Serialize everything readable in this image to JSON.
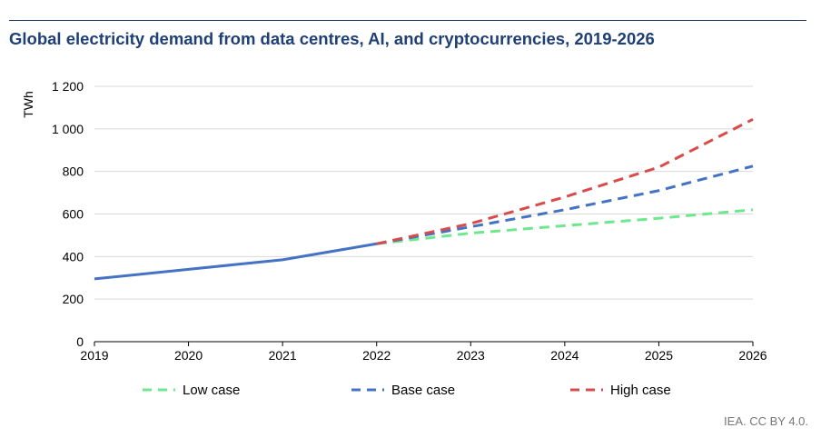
{
  "chart_data": {
    "type": "line",
    "title": "Global electricity demand from data centres, AI, and cryptocurrencies, 2019-2026",
    "ylabel": "TWh",
    "xlabel": "",
    "x": [
      "2019",
      "2020",
      "2021",
      "2022",
      "2023",
      "2024",
      "2025",
      "2026"
    ],
    "yticks": [
      "0",
      "200",
      "400",
      "600",
      "800",
      "1 000",
      "1 200"
    ],
    "ylim": [
      0,
      1200
    ],
    "grid": true,
    "legend": "bottom",
    "historical": {
      "x": [
        "2019",
        "2020",
        "2021",
        "2022"
      ],
      "values": [
        295,
        340,
        385,
        460
      ],
      "color": "#4472c4"
    },
    "series": [
      {
        "name": "Low case",
        "x": [
          "2022",
          "2023",
          "2024",
          "2025",
          "2026"
        ],
        "values": [
          460,
          510,
          545,
          580,
          620
        ],
        "color": "#6ee88f",
        "dash": true
      },
      {
        "name": "Base case",
        "x": [
          "2022",
          "2023",
          "2024",
          "2025",
          "2026"
        ],
        "values": [
          460,
          540,
          620,
          710,
          825
        ],
        "color": "#4472c4",
        "dash": true
      },
      {
        "name": "High case",
        "x": [
          "2022",
          "2023",
          "2024",
          "2025",
          "2026"
        ],
        "values": [
          460,
          555,
          680,
          820,
          1045
        ],
        "color": "#d94b4b",
        "dash": true
      }
    ]
  },
  "credit": "IEA. CC BY 4.0."
}
